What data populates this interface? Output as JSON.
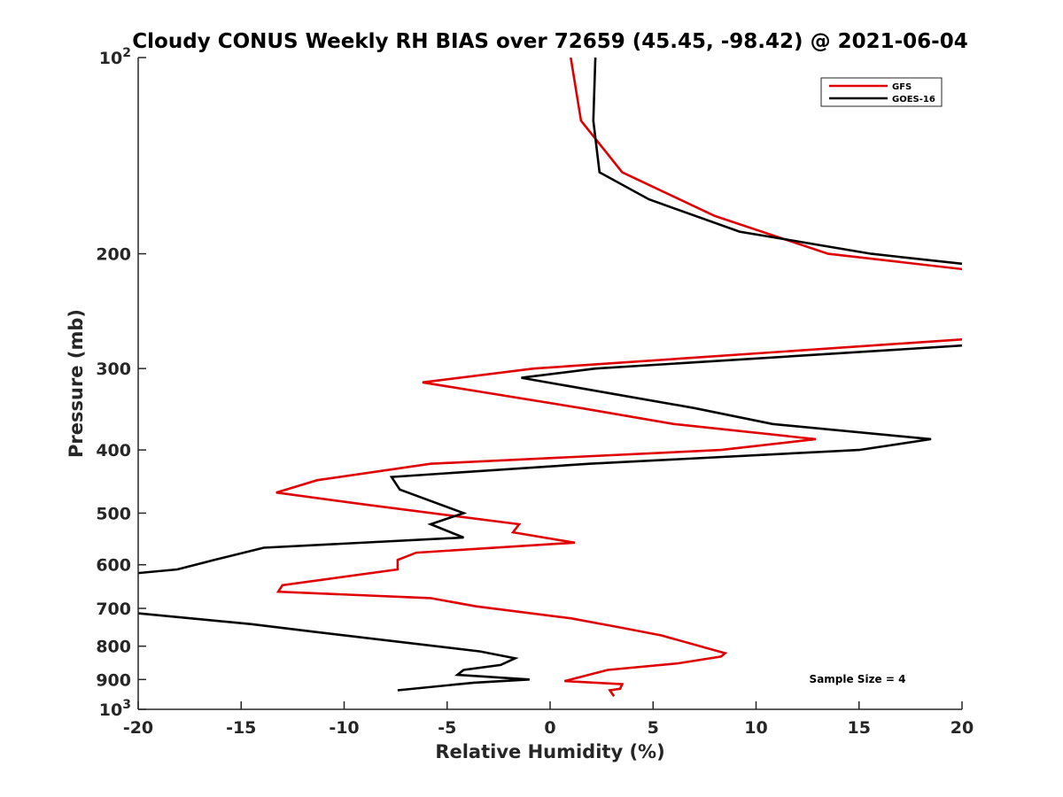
{
  "chart_data": {
    "type": "line",
    "title": "Cloudy CONUS Weekly RH BIAS over 72659 (45.45, -98.42) @ 2021-06-04",
    "xlabel": "Relative Humidity (%)",
    "ylabel": "Pressure (mb)",
    "xlim": [
      -20,
      20
    ],
    "ylim": [
      100,
      1000
    ],
    "yscale": "log",
    "y_reversed": true,
    "grid": false,
    "legend_position": "top-right",
    "x_ticks": [
      "-20",
      "-15",
      "-10",
      "-5",
      "0",
      "5",
      "10",
      "15",
      "20"
    ],
    "y_ticks": [
      {
        "value": 100,
        "base": "10",
        "exp": "2"
      },
      {
        "value": 200,
        "label": "200"
      },
      {
        "value": 300,
        "label": "300"
      },
      {
        "value": 400,
        "label": "400"
      },
      {
        "value": 500,
        "label": "500"
      },
      {
        "value": 600,
        "label": "600"
      },
      {
        "value": 700,
        "label": "700"
      },
      {
        "value": 800,
        "label": "800"
      },
      {
        "value": 900,
        "label": "900"
      },
      {
        "value": 1000,
        "base": "10",
        "exp": "3"
      }
    ],
    "annotation": "Sample Size = 4",
    "series": [
      {
        "name": "GFS",
        "color": "#e00000",
        "points": [
          [
            1.0,
            100
          ],
          [
            1.5,
            125
          ],
          [
            3.5,
            150
          ],
          [
            8.0,
            175
          ],
          [
            13.5,
            200
          ],
          [
            20.5,
            212
          ],
          [
            20.5,
            270
          ],
          [
            -0.8,
            300
          ],
          [
            -6.2,
            315
          ],
          [
            1.5,
            345
          ],
          [
            6.0,
            365
          ],
          [
            12.9,
            385
          ],
          [
            8.3,
            400
          ],
          [
            -5.8,
            420
          ],
          [
            -11.3,
            445
          ],
          [
            -13.3,
            465
          ],
          [
            -9.0,
            485
          ],
          [
            -1.5,
            520
          ],
          [
            -1.8,
            535
          ],
          [
            1.2,
            555
          ],
          [
            -6.5,
            575
          ],
          [
            -7.4,
            590
          ],
          [
            -7.4,
            610
          ],
          [
            -13.0,
            645
          ],
          [
            -13.2,
            660
          ],
          [
            -5.8,
            675
          ],
          [
            -3.6,
            695
          ],
          [
            1.0,
            725
          ],
          [
            3.5,
            750
          ],
          [
            5.4,
            770
          ],
          [
            8.5,
            820
          ],
          [
            8.3,
            830
          ],
          [
            6.2,
            850
          ],
          [
            2.8,
            870
          ],
          [
            0.7,
            905
          ],
          [
            3.5,
            915
          ],
          [
            3.4,
            930
          ],
          [
            2.9,
            935
          ],
          [
            3.1,
            955
          ]
        ]
      },
      {
        "name": "GOES-16",
        "color": "#000000",
        "points": [
          [
            2.2,
            100
          ],
          [
            2.1,
            125
          ],
          [
            2.4,
            150
          ],
          [
            4.8,
            165
          ],
          [
            9.2,
            185
          ],
          [
            15.6,
            200
          ],
          [
            20.5,
            208
          ],
          [
            20.5,
            276
          ],
          [
            2.2,
            300
          ],
          [
            -1.4,
            310
          ],
          [
            7.0,
            345
          ],
          [
            10.8,
            365
          ],
          [
            18.5,
            385
          ],
          [
            15.0,
            400
          ],
          [
            1.9,
            420
          ],
          [
            -7.7,
            440
          ],
          [
            -7.3,
            460
          ],
          [
            -4.2,
            500
          ],
          [
            -5.8,
            520
          ],
          [
            -4.2,
            545
          ],
          [
            -13.9,
            565
          ],
          [
            -16.3,
            590
          ],
          [
            -18.1,
            610
          ],
          [
            -20.5,
            620
          ],
          [
            -20.5,
            710
          ],
          [
            -14.5,
            740
          ],
          [
            -11.5,
            760
          ],
          [
            -3.4,
            815
          ],
          [
            -1.7,
            835
          ],
          [
            -2.4,
            855
          ],
          [
            -4.2,
            870
          ],
          [
            -4.5,
            885
          ],
          [
            -1.0,
            900
          ],
          [
            -3.7,
            910
          ],
          [
            -7.4,
            935
          ]
        ]
      }
    ]
  }
}
